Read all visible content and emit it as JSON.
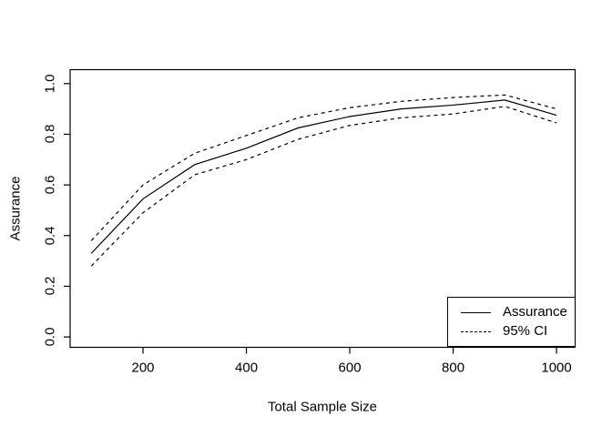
{
  "chart_data": {
    "type": "line",
    "title": "",
    "xlabel": "Total Sample Size",
    "ylabel": "Assurance",
    "x": [
      100,
      200,
      300,
      400,
      500,
      600,
      700,
      800,
      900,
      1000
    ],
    "series": [
      {
        "name": "Assurance",
        "style": "solid",
        "values": [
          0.33,
          0.545,
          0.68,
          0.745,
          0.825,
          0.87,
          0.9,
          0.915,
          0.935,
          0.875
        ]
      },
      {
        "name": "95% CI upper",
        "style": "dashed",
        "values": [
          0.38,
          0.6,
          0.725,
          0.795,
          0.865,
          0.905,
          0.93,
          0.945,
          0.955,
          0.9
        ]
      },
      {
        "name": "95% CI lower",
        "style": "dashed",
        "values": [
          0.28,
          0.49,
          0.64,
          0.7,
          0.78,
          0.835,
          0.865,
          0.88,
          0.91,
          0.845
        ]
      }
    ],
    "x_ticks": [
      "200",
      "400",
      "600",
      "800",
      "1000"
    ],
    "x_tick_values": [
      200,
      400,
      600,
      800,
      1000
    ],
    "y_ticks": [
      "0.0",
      "0.2",
      "0.4",
      "0.6",
      "0.8",
      "1.0"
    ],
    "y_tick_values": [
      0.0,
      0.2,
      0.4,
      0.6,
      0.8,
      1.0
    ],
    "xlim": [
      59,
      1036
    ],
    "ylim": [
      -0.041,
      1.055
    ],
    "grid": "off",
    "legend": {
      "position": "bottomright",
      "entries": [
        {
          "label": "Assurance",
          "style": "solid"
        },
        {
          "label": "95% CI",
          "style": "dashed"
        }
      ]
    },
    "colors": {
      "line": "#000000",
      "background": "#ffffff"
    }
  }
}
